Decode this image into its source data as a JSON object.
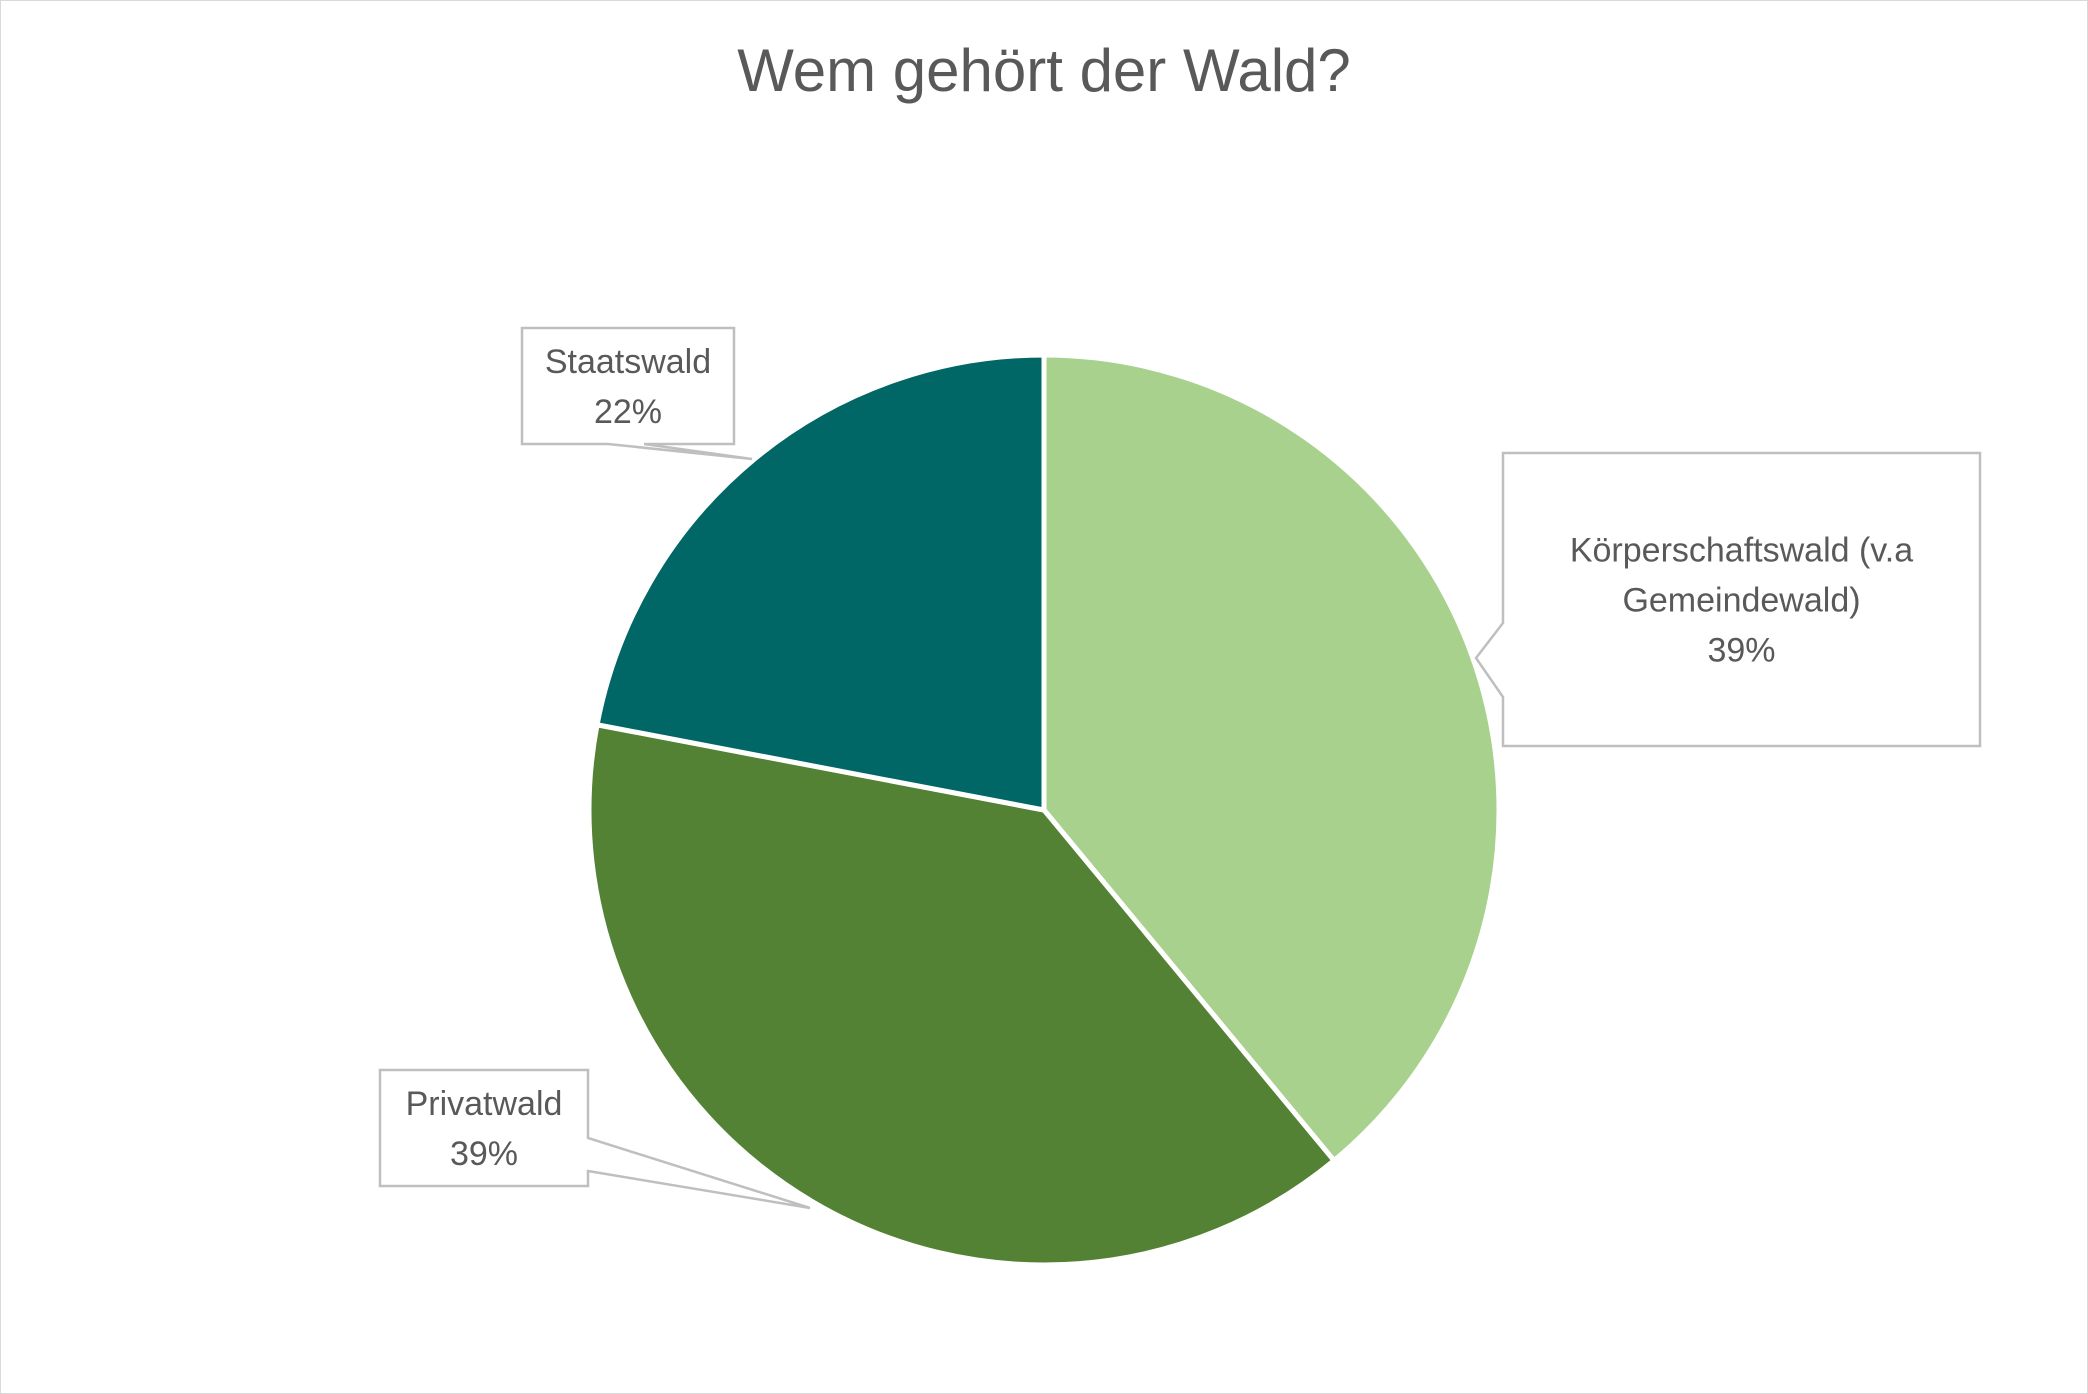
{
  "chart_data": {
    "type": "pie",
    "title": "Wem gehört der Wald?",
    "slices": [
      {
        "name": "Körperschaftswald (v.a Gemeindewald)",
        "label_lines": [
          "Körperschaftswald (v.a",
          "Gemeindewald)"
        ],
        "value": 39,
        "percent_label": "39%",
        "color": "#a9d18e"
      },
      {
        "name": "Privatwald",
        "label_lines": [
          "Privatwald"
        ],
        "value": 39,
        "percent_label": "39%",
        "color": "#548235"
      },
      {
        "name": "Staatswald",
        "label_lines": [
          "Staatswald"
        ],
        "value": 22,
        "percent_label": "22%",
        "color": "#006666"
      }
    ],
    "start_angle_deg": 0,
    "direction": "clockwise"
  }
}
